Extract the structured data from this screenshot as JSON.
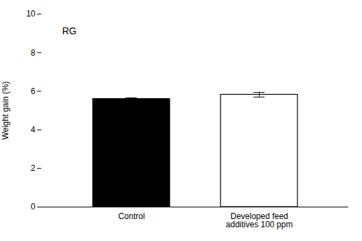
{
  "chart_data": {
    "type": "bar",
    "categories": [
      "Control",
      "Developed feed\nadditives 100 ppm"
    ],
    "values": [
      5.6,
      5.82
    ],
    "errors": [
      0.06,
      0.12
    ],
    "colors": [
      "#000000",
      "#ffffff"
    ],
    "ylabel": "Weight gain (%)",
    "ylim": [
      0,
      10
    ],
    "yticks": [
      0,
      2,
      4,
      6,
      8,
      10
    ],
    "annotation": "RG"
  }
}
